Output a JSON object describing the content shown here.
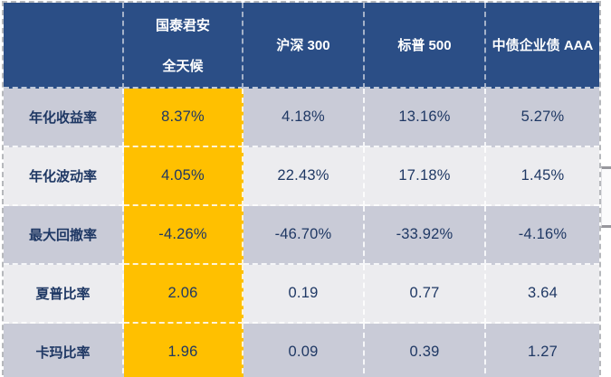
{
  "chart_data": {
    "type": "table",
    "columns": [
      "",
      "国泰君安 全天候",
      "沪深 300",
      "标普 500",
      "中债企业债 AAA"
    ],
    "metrics": [
      "年化收益率",
      "年化波动率",
      "最大回撤率",
      "夏普比率",
      "卡玛比率"
    ],
    "series": [
      {
        "name": "国泰君安全天候",
        "values": [
          "8.37%",
          "4.05%",
          "-4.26%",
          "2.06",
          "1.96"
        ]
      },
      {
        "name": "沪深 300",
        "values": [
          "4.18%",
          "22.43%",
          "-46.70%",
          "0.19",
          "0.09"
        ]
      },
      {
        "name": "标普 500",
        "values": [
          "13.16%",
          "17.18%",
          "-33.92%",
          "0.77",
          "0.39"
        ]
      },
      {
        "name": "中债企业债 AAA",
        "values": [
          "5.27%",
          "1.45%",
          "-4.16%",
          "3.64",
          "1.27"
        ]
      }
    ],
    "layout_hints": {
      "highlighted_column": "国泰君安全天候",
      "grid": "dashed-white",
      "row_striping": "gray-light alternating"
    }
  },
  "table": {
    "header": {
      "empty": "",
      "gtja_line1": "国泰君安",
      "gtja_line2": "全天候",
      "col3": "沪深 300",
      "col4": "标普 500",
      "col5": "中债企业债 AAA"
    },
    "rows": [
      {
        "metric": "年化收益率",
        "values": [
          "8.37%",
          "4.18%",
          "13.16%",
          "5.27%"
        ]
      },
      {
        "metric": "年化波动率",
        "values": [
          "4.05%",
          "22.43%",
          "17.18%",
          "1.45%"
        ]
      },
      {
        "metric": "最大回撤率",
        "values": [
          "-4.26%",
          "-46.70%",
          "-33.92%",
          "-4.16%"
        ]
      },
      {
        "metric": "夏普比率",
        "values": [
          "2.06",
          "0.19",
          "0.77",
          "3.64"
        ]
      },
      {
        "metric": "卡玛比率",
        "values": [
          "1.96",
          "0.09",
          "0.39",
          "1.27"
        ]
      }
    ]
  },
  "colors": {
    "header_bg": "#2B4E86",
    "highlight_bg": "#FFC000",
    "row_odd_bg": "#C9CBD7",
    "row_even_bg": "#ECECEF",
    "text_navy": "#1F3864",
    "header_text": "#FFFFFF",
    "outer_border": "#B6B8BC"
  }
}
